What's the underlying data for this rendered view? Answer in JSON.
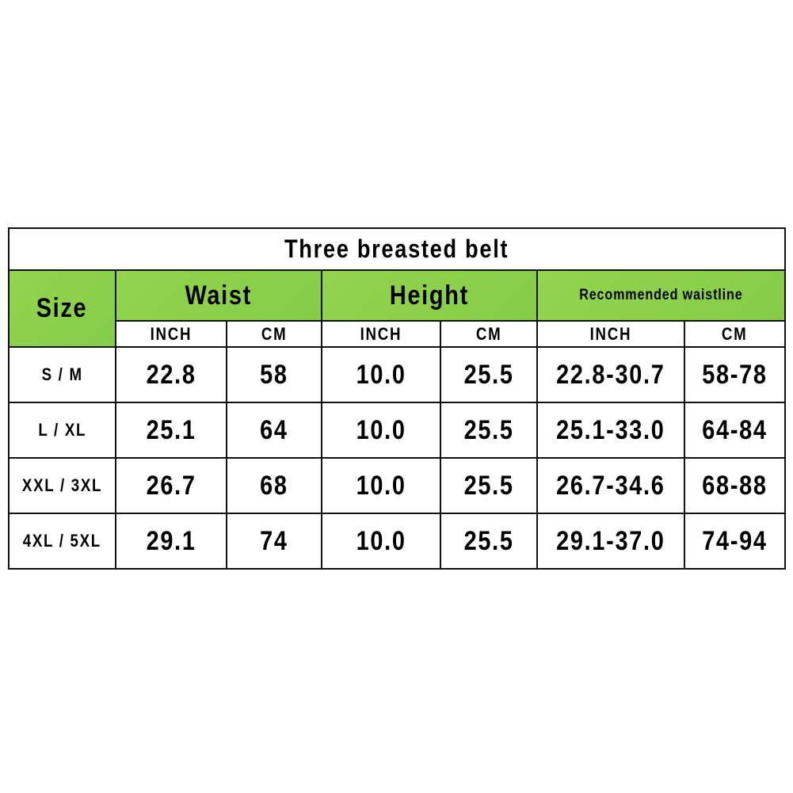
{
  "title": "Three breasted belt",
  "header": {
    "size": "Size",
    "groups": [
      "Waist",
      "Height",
      "Recommended waistline"
    ],
    "units": [
      "INCH",
      "CM",
      "INCH",
      "CM",
      "INCH",
      "CM"
    ]
  },
  "colors": {
    "header_green": "#8fd14d",
    "border": "#111111"
  },
  "rows": [
    {
      "size": "S / M",
      "values": [
        "22.8",
        "58",
        "10.0",
        "25.5",
        "22.8-30.7",
        "58-78"
      ]
    },
    {
      "size": "L / XL",
      "values": [
        "25.1",
        "64",
        "10.0",
        "25.5",
        "25.1-33.0",
        "64-84"
      ]
    },
    {
      "size": "XXL / 3XL",
      "values": [
        "26.7",
        "68",
        "10.0",
        "25.5",
        "26.7-34.6",
        "68-88"
      ]
    },
    {
      "size": "4XL / 5XL",
      "values": [
        "29.1",
        "74",
        "10.0",
        "25.5",
        "29.1-37.0",
        "74-94"
      ]
    }
  ]
}
